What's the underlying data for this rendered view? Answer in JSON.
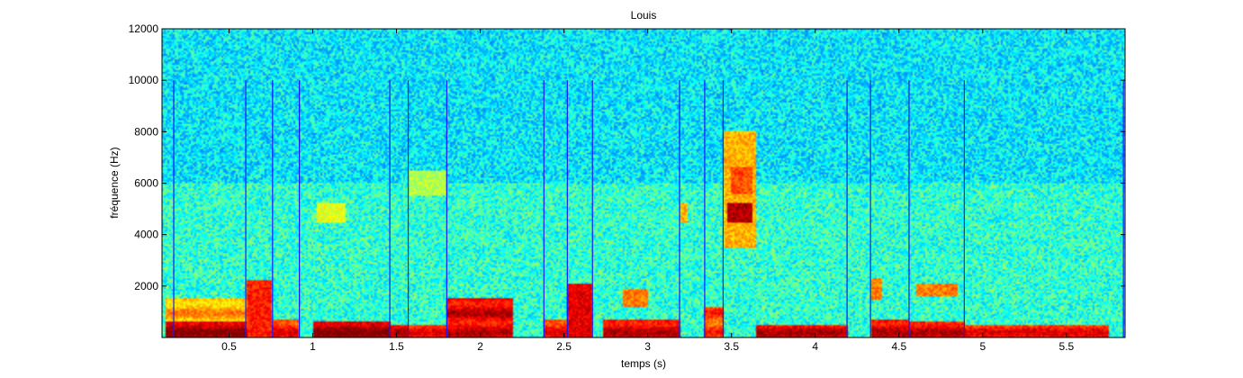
{
  "chart_data": {
    "type": "heatmap",
    "subtype": "spectrogram",
    "title": "Louis",
    "xlabel": "temps (s)",
    "ylabel": "fréquence (Hz)",
    "xlim": [
      0.1,
      5.85
    ],
    "ylim": [
      0,
      12000
    ],
    "xticks": [
      0.5,
      1,
      1.5,
      2,
      2.5,
      3,
      3.5,
      4,
      4.5,
      5,
      5.5
    ],
    "xtick_labels": [
      "0.5",
      "1",
      "1.5",
      "2",
      "2.5",
      "3",
      "3.5",
      "4",
      "4.5",
      "5",
      "5.5"
    ],
    "yticks": [
      2000,
      4000,
      6000,
      8000,
      10000,
      12000
    ],
    "ytick_labels": [
      "2000",
      "4000",
      "6000",
      "8000",
      "10000",
      "12000"
    ],
    "colormap": "jet",
    "grid": false,
    "segment_boundaries_s": [
      0.17,
      0.6,
      0.76,
      0.92,
      1.46,
      1.57,
      1.8,
      2.38,
      2.52,
      2.67,
      3.19,
      3.34,
      3.45,
      4.19,
      4.33,
      4.56,
      4.89,
      5.84
    ],
    "segment_line_top_hz": 10000,
    "segment_line_color": "#1a1aff",
    "energy_regions": [
      {
        "t0": 0.12,
        "t1": 0.6,
        "f0": 0,
        "f1": 600,
        "level": 0.95
      },
      {
        "t0": 0.12,
        "t1": 0.6,
        "f0": 600,
        "f1": 1500,
        "level": 0.7
      },
      {
        "t0": 0.6,
        "t1": 0.76,
        "f0": 0,
        "f1": 2200,
        "level": 0.85
      },
      {
        "t0": 0.76,
        "t1": 0.92,
        "f0": 0,
        "f1": 700,
        "level": 0.85
      },
      {
        "t0": 1.0,
        "t1": 1.46,
        "f0": 0,
        "f1": 600,
        "level": 0.95
      },
      {
        "t0": 1.02,
        "t1": 1.2,
        "f0": 4500,
        "f1": 5200,
        "level": 0.6
      },
      {
        "t0": 1.46,
        "t1": 1.57,
        "f0": 0,
        "f1": 500,
        "level": 0.9
      },
      {
        "t0": 1.57,
        "t1": 1.8,
        "f0": 0,
        "f1": 500,
        "level": 0.85
      },
      {
        "t0": 1.57,
        "t1": 1.8,
        "f0": 5500,
        "f1": 6500,
        "level": 0.55
      },
      {
        "t0": 1.8,
        "t1": 2.2,
        "f0": 0,
        "f1": 1500,
        "level": 0.9
      },
      {
        "t0": 2.38,
        "t1": 2.52,
        "f0": 0,
        "f1": 700,
        "level": 0.85
      },
      {
        "t0": 2.52,
        "t1": 2.67,
        "f0": 0,
        "f1": 2100,
        "level": 0.9
      },
      {
        "t0": 2.73,
        "t1": 3.19,
        "f0": 0,
        "f1": 700,
        "level": 0.9
      },
      {
        "t0": 2.85,
        "t1": 3.0,
        "f0": 1200,
        "f1": 1900,
        "level": 0.75
      },
      {
        "t0": 3.19,
        "t1": 3.24,
        "f0": 4500,
        "f1": 5200,
        "level": 0.7
      },
      {
        "t0": 3.34,
        "t1": 3.45,
        "f0": 0,
        "f1": 1200,
        "level": 0.8
      },
      {
        "t0": 3.45,
        "t1": 3.65,
        "f0": 3500,
        "f1": 8000,
        "level": 0.7
      },
      {
        "t0": 3.48,
        "t1": 3.62,
        "f0": 4500,
        "f1": 5200,
        "level": 0.95
      },
      {
        "t0": 3.5,
        "t1": 3.62,
        "f0": 5600,
        "f1": 6600,
        "level": 0.8
      },
      {
        "t0": 3.65,
        "t1": 4.19,
        "f0": 0,
        "f1": 500,
        "level": 0.9
      },
      {
        "t0": 4.33,
        "t1": 4.56,
        "f0": 0,
        "f1": 700,
        "level": 0.9
      },
      {
        "t0": 4.33,
        "t1": 4.4,
        "f0": 1500,
        "f1": 2300,
        "level": 0.75
      },
      {
        "t0": 4.56,
        "t1": 4.89,
        "f0": 0,
        "f1": 600,
        "level": 0.9
      },
      {
        "t0": 4.6,
        "t1": 4.85,
        "f0": 1600,
        "f1": 2100,
        "level": 0.75
      },
      {
        "t0": 4.89,
        "t1": 5.75,
        "f0": 0,
        "f1": 500,
        "level": 0.85
      }
    ]
  }
}
